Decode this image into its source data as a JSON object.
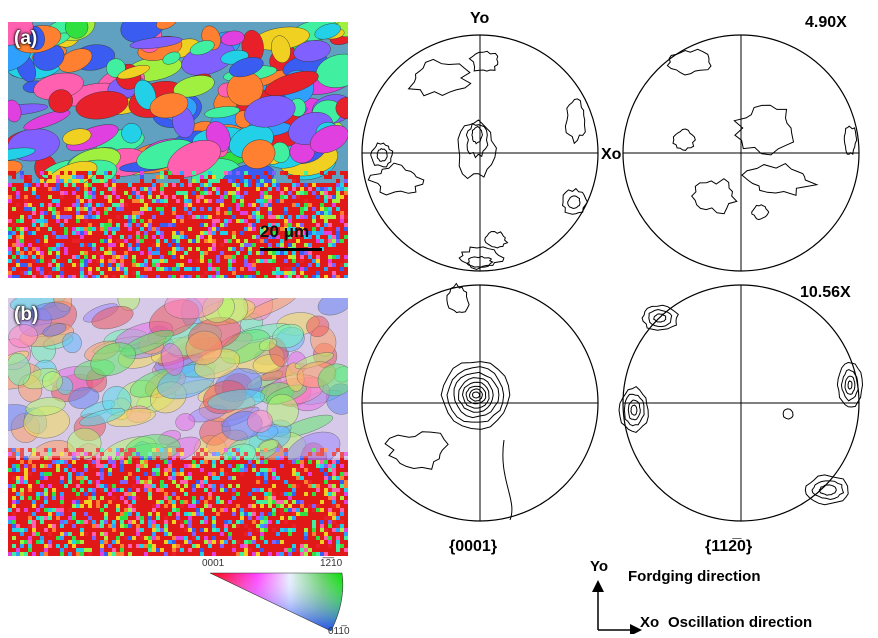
{
  "maps": {
    "a": {
      "tag": "(a)",
      "scale_label": "20 μm"
    },
    "b": {
      "tag": "(b)"
    }
  },
  "legend": {
    "corner_0001": "0001",
    "corner_1210": "1̅2̅10",
    "corner_0110": "011̅0"
  },
  "pole_figures": {
    "axis_y": "Yo",
    "axis_x": "Xo",
    "max_top": "4.90X",
    "max_bottom": "10.56X",
    "plane_left": "{0001}",
    "plane_right": "{112̅0}"
  },
  "axes_key": {
    "y_symbol": "Yo",
    "y_text": "Fordging direction",
    "x_symbol": "Xo",
    "x_text": "Oscillation direction"
  },
  "colors": {
    "red": "#e8202a",
    "green": "#2fe040",
    "blue": "#3a5cf0",
    "line": "#000000"
  }
}
